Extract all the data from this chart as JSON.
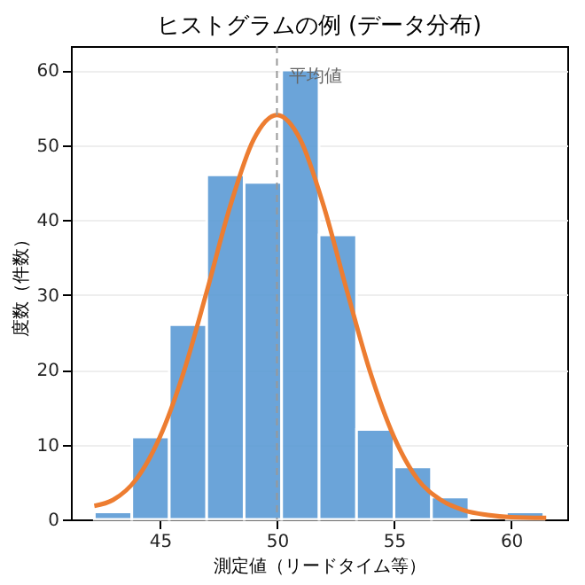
{
  "chart_data": {
    "type": "histogram",
    "title": "ヒストグラムの例 (データ分布)",
    "xlabel": "測定値（リードタイム等）",
    "ylabel": "度数（件数）",
    "bins": [
      42.2,
      43.8,
      45.4,
      47.0,
      48.6,
      50.2,
      51.8,
      53.4,
      55.0,
      56.6,
      58.2,
      59.8,
      61.4
    ],
    "values": [
      1,
      11,
      26,
      46,
      45,
      60,
      38,
      12,
      7,
      3,
      0,
      1
    ],
    "color": "#5b9bd5",
    "series": [
      {
        "type": "line",
        "color": "#ed7d31",
        "x": [
          42.2,
          43,
          44,
          45,
          46,
          47,
          48,
          49,
          50,
          51,
          52,
          53,
          54,
          55,
          56,
          57,
          58,
          59,
          60,
          61.5
        ],
        "values": [
          1.8,
          2.6,
          5.4,
          11,
          19.5,
          30.4,
          41.8,
          50.7,
          54,
          50.7,
          41.8,
          30.4,
          19.5,
          11,
          5.4,
          2.6,
          1.2,
          0.6,
          0.3,
          0.2
        ]
      }
    ],
    "ref_lines": [
      {
        "axis": "x",
        "value": 50,
        "label": "平均値",
        "color": "#999999",
        "line_style": "dashed"
      }
    ],
    "xlim": [
      41.2,
      62.4
    ],
    "xticks": [
      45,
      50,
      55,
      60
    ],
    "ylim": [
      0,
      63.2
    ],
    "yticks": [
      0,
      10,
      20,
      30,
      40,
      50,
      60
    ],
    "grid": "y"
  }
}
